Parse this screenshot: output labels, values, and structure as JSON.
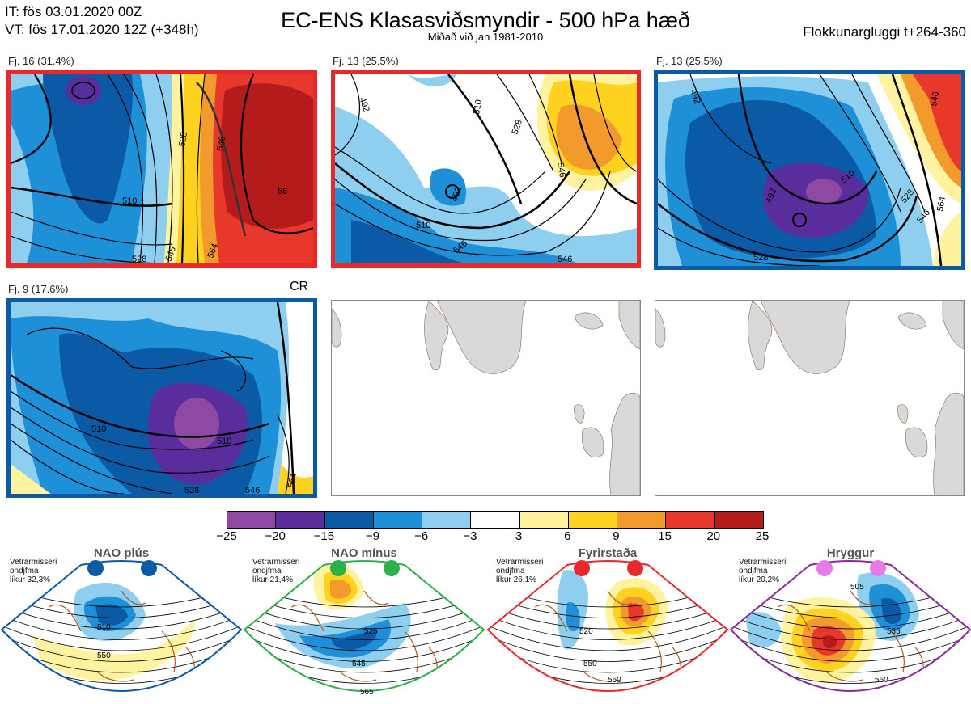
{
  "header": {
    "init_time": "IT: fös 03.01.2020 00Z",
    "valid_time": "VT: fös 17.01.2020 12Z  (+348h)",
    "title": "EC-ENS Klasasviðsmyndir - 500 hPa hæð",
    "subtitle": "Miðað við jan 1981-2010",
    "window": "Flokkunargluggi t+264-360"
  },
  "clusters": [
    {
      "label": "Fj. 16 (31.4%)",
      "frame_color": "#e8282b",
      "contours": [
        "528",
        "510",
        "546",
        "528",
        "564",
        "56",
        "546"
      ]
    },
    {
      "label": "Fj. 13 (25.5%)",
      "frame_color": "#e8282b",
      "contours": [
        "492",
        "510",
        "528",
        "546",
        "510",
        "546",
        "546",
        "492"
      ]
    },
    {
      "label": "Fj. 13 (25.5%)",
      "frame_color": "#0b5aa6",
      "contours": [
        "492",
        "510",
        "528",
        "546",
        "564",
        "546",
        "492",
        "528"
      ]
    },
    {
      "label": "Fj. 9 (17.6%)",
      "frame_color": "#0b5aa6",
      "contours": [
        "510",
        "510",
        "528",
        "546",
        "564"
      ]
    }
  ],
  "cr_label": "CR",
  "colorbar": {
    "colors": [
      "#8e4aa3",
      "#5a2d9c",
      "#0b5aa6",
      "#1e90d8",
      "#8ecff0",
      "#ffffff",
      "#fff3a0",
      "#ffd21f",
      "#f39a2c",
      "#e8382b",
      "#b41b1b"
    ],
    "ticks": [
      "−25",
      "−20",
      "−15",
      "−9",
      "−6",
      "−3",
      "3",
      "6",
      "9",
      "15",
      "20",
      "25"
    ]
  },
  "regimes": [
    {
      "title": "NAO plús",
      "info": [
        "Vetrarmisseri",
        "ondjfma",
        "líkur 32,3%"
      ],
      "color": "#0b5aa6",
      "contours": [
        "510",
        "550"
      ]
    },
    {
      "title": "NAO mínus",
      "info": [
        "Vetrarmisseri",
        "ondjfma",
        "líkur 21,4%"
      ],
      "color": "#2bb04a",
      "contours": [
        "525",
        "545",
        "565"
      ]
    },
    {
      "title": "Fyrirstaða",
      "info": [
        "Vetrarmisseri",
        "ondjfma",
        "líkur 26,1%"
      ],
      "color": "#e8282b",
      "contours": [
        "520",
        "550",
        "560"
      ]
    },
    {
      "title": "Hryggur",
      "info": [
        "Vetrarmisseri",
        "ondjfma",
        "líkur 20,2%"
      ],
      "color": "#8b2a9a",
      "contours": [
        "505",
        "535",
        "560"
      ]
    }
  ]
}
